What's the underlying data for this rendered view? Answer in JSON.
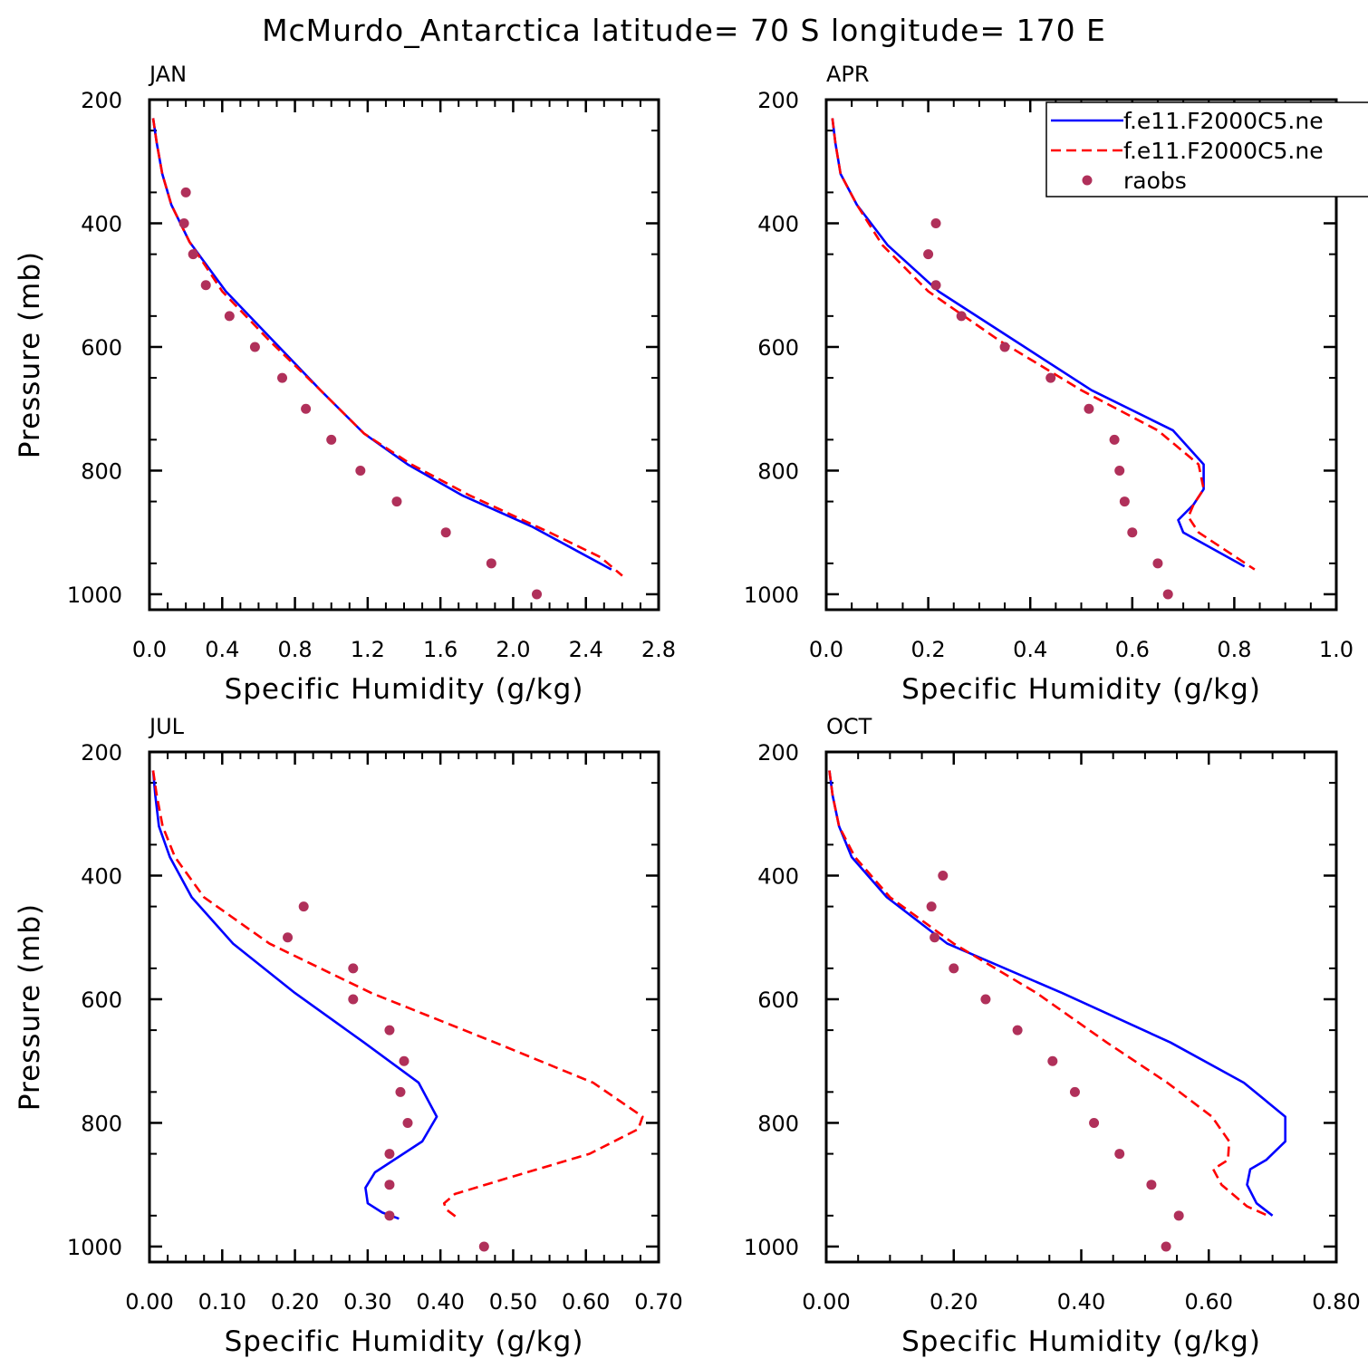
{
  "title": "McMurdo_Antarctica  latitude= 70 S longitude= 170 E",
  "legend": {
    "placement": "top-right of APR panel",
    "entries": [
      {
        "label": "f.e11.F2000C5.ne",
        "color": "#0000ff",
        "style": "solid"
      },
      {
        "label": "f.e11.F2000C5.ne",
        "color": "#ff0000",
        "style": "dashed"
      },
      {
        "label": "raobs",
        "color": "#b0305a",
        "style": "dot"
      }
    ]
  },
  "colors": {
    "model1": "#0000ff",
    "model2": "#ff0000",
    "raobs": "#b0305a"
  },
  "chart_data": [
    {
      "type": "line",
      "panel": "JAN",
      "xlabel": "Specific Humidity (g/kg)",
      "ylabel": "Pressure (mb)",
      "xlim": [
        0.0,
        2.8
      ],
      "ylim": [
        1025,
        200
      ],
      "y_inverted": true,
      "xticks": [
        0.0,
        0.4,
        0.8,
        1.2,
        1.6,
        2.0,
        2.4,
        2.8
      ],
      "xtick_labels": [
        "0.0",
        "0.4",
        "0.8",
        "1.2",
        "1.6",
        "2.0",
        "2.4",
        "2.8"
      ],
      "yticks": [
        200,
        400,
        600,
        800,
        1000
      ],
      "ytick_labels": [
        "200",
        "400",
        "600",
        "800",
        "1000"
      ],
      "series": [
        {
          "name": "f.e11.F2000C5.ne",
          "style": "solid",
          "color": "#0000ff",
          "points": [
            [
              0.02,
              230
            ],
            [
              0.04,
              270
            ],
            [
              0.07,
              320
            ],
            [
              0.12,
              370
            ],
            [
              0.22,
              430
            ],
            [
              0.42,
              510
            ],
            [
              0.68,
              590
            ],
            [
              0.94,
              670
            ],
            [
              1.18,
              740
            ],
            [
              1.42,
              790
            ],
            [
              1.72,
              840
            ],
            [
              2.1,
              890
            ],
            [
              2.54,
              960
            ]
          ]
        },
        {
          "name": "f.e11.F2000C5.ne",
          "style": "dashed",
          "color": "#ff0000",
          "points": [
            [
              0.02,
              230
            ],
            [
              0.04,
              270
            ],
            [
              0.07,
              320
            ],
            [
              0.12,
              370
            ],
            [
              0.22,
              430
            ],
            [
              0.4,
              510
            ],
            [
              0.66,
              590
            ],
            [
              0.94,
              670
            ],
            [
              1.18,
              740
            ],
            [
              1.44,
              790
            ],
            [
              1.76,
              840
            ],
            [
              2.2,
              900
            ],
            [
              2.48,
              940
            ],
            [
              2.6,
              970
            ]
          ]
        },
        {
          "name": "raobs",
          "style": "dot",
          "color": "#b0305a",
          "points": [
            [
              0.2,
              350
            ],
            [
              0.19,
              400
            ],
            [
              0.24,
              450
            ],
            [
              0.31,
              500
            ],
            [
              0.44,
              550
            ],
            [
              0.58,
              600
            ],
            [
              0.73,
              650
            ],
            [
              0.86,
              700
            ],
            [
              1.0,
              750
            ],
            [
              1.16,
              800
            ],
            [
              1.36,
              850
            ],
            [
              1.63,
              900
            ],
            [
              1.88,
              950
            ],
            [
              2.13,
              1000
            ]
          ]
        }
      ]
    },
    {
      "type": "line",
      "panel": "APR",
      "xlabel": "Specific Humidity (g/kg)",
      "ylabel": "",
      "xlim": [
        0.0,
        1.0
      ],
      "ylim": [
        1025,
        200
      ],
      "y_inverted": true,
      "xticks": [
        0.0,
        0.2,
        0.4,
        0.6,
        0.8,
        1.0
      ],
      "xtick_labels": [
        "0.0",
        "0.2",
        "0.4",
        "0.6",
        "0.8",
        "1.0"
      ],
      "yticks": [
        200,
        400,
        600,
        800,
        1000
      ],
      "ytick_labels": [
        "200",
        "400",
        "600",
        "800",
        "1000"
      ],
      "series": [
        {
          "name": "f.e11.F2000C5.ne",
          "style": "solid",
          "color": "#0000ff",
          "points": [
            [
              0.012,
              230
            ],
            [
              0.018,
              270
            ],
            [
              0.028,
              320
            ],
            [
              0.06,
              370
            ],
            [
              0.12,
              435
            ],
            [
              0.22,
              510
            ],
            [
              0.37,
              590
            ],
            [
              0.52,
              670
            ],
            [
              0.68,
              735
            ],
            [
              0.74,
              790
            ],
            [
              0.74,
              830
            ],
            [
              0.72,
              855
            ],
            [
              0.69,
              880
            ],
            [
              0.7,
              900
            ],
            [
              0.82,
              955
            ]
          ]
        },
        {
          "name": "f.e11.F2000C5.ne",
          "style": "dashed",
          "color": "#ff0000",
          "points": [
            [
              0.012,
              230
            ],
            [
              0.018,
              270
            ],
            [
              0.028,
              320
            ],
            [
              0.06,
              370
            ],
            [
              0.11,
              435
            ],
            [
              0.2,
              510
            ],
            [
              0.34,
              590
            ],
            [
              0.5,
              670
            ],
            [
              0.65,
              735
            ],
            [
              0.73,
              790
            ],
            [
              0.74,
              830
            ],
            [
              0.72,
              855
            ],
            [
              0.71,
              875
            ],
            [
              0.73,
              900
            ],
            [
              0.84,
              960
            ]
          ]
        },
        {
          "name": "raobs",
          "style": "dot",
          "color": "#b0305a",
          "points": [
            [
              0.215,
              400
            ],
            [
              0.2,
              450
            ],
            [
              0.215,
              500
            ],
            [
              0.265,
              550
            ],
            [
              0.35,
              600
            ],
            [
              0.44,
              650
            ],
            [
              0.515,
              700
            ],
            [
              0.565,
              750
            ],
            [
              0.575,
              800
            ],
            [
              0.585,
              850
            ],
            [
              0.6,
              900
            ],
            [
              0.65,
              950
            ],
            [
              0.67,
              1000
            ]
          ]
        }
      ]
    },
    {
      "type": "line",
      "panel": "JUL",
      "xlabel": "Specific Humidity (g/kg)",
      "ylabel": "Pressure (mb)",
      "xlim": [
        0.0,
        0.7
      ],
      "ylim": [
        1025,
        200
      ],
      "y_inverted": true,
      "xticks": [
        0.0,
        0.1,
        0.2,
        0.3,
        0.4,
        0.5,
        0.6,
        0.7
      ],
      "xtick_labels": [
        "0.00",
        "0.10",
        "0.20",
        "0.30",
        "0.40",
        "0.50",
        "0.60",
        "0.70"
      ],
      "yticks": [
        200,
        400,
        600,
        800,
        1000
      ],
      "ytick_labels": [
        "200",
        "400",
        "600",
        "800",
        "1000"
      ],
      "series": [
        {
          "name": "f.e11.F2000C5.ne",
          "style": "solid",
          "color": "#0000ff",
          "points": [
            [
              0.005,
              230
            ],
            [
              0.008,
              270
            ],
            [
              0.013,
              320
            ],
            [
              0.028,
              370
            ],
            [
              0.058,
              435
            ],
            [
              0.115,
              510
            ],
            [
              0.2,
              590
            ],
            [
              0.295,
              670
            ],
            [
              0.37,
              735
            ],
            [
              0.395,
              790
            ],
            [
              0.375,
              830
            ],
            [
              0.31,
              880
            ],
            [
              0.297,
              905
            ],
            [
              0.3,
              930
            ],
            [
              0.32,
              945
            ],
            [
              0.343,
              955
            ]
          ]
        },
        {
          "name": "f.e11.F2000C5.ne",
          "style": "dashed",
          "color": "#ff0000",
          "points": [
            [
              0.005,
              230
            ],
            [
              0.01,
              270
            ],
            [
              0.018,
              320
            ],
            [
              0.035,
              370
            ],
            [
              0.075,
              435
            ],
            [
              0.165,
              510
            ],
            [
              0.305,
              590
            ],
            [
              0.475,
              670
            ],
            [
              0.61,
              735
            ],
            [
              0.678,
              790
            ],
            [
              0.672,
              810
            ],
            [
              0.605,
              850
            ],
            [
              0.49,
              890
            ],
            [
              0.42,
              915
            ],
            [
              0.405,
              930
            ],
            [
              0.408,
              940
            ],
            [
              0.425,
              955
            ]
          ]
        },
        {
          "name": "raobs",
          "style": "dot",
          "color": "#b0305a",
          "points": [
            [
              0.212,
              450
            ],
            [
              0.19,
              500
            ],
            [
              0.28,
              550
            ],
            [
              0.28,
              600
            ],
            [
              0.33,
              650
            ],
            [
              0.35,
              700
            ],
            [
              0.345,
              750
            ],
            [
              0.355,
              800
            ],
            [
              0.33,
              850
            ],
            [
              0.33,
              900
            ],
            [
              0.33,
              950
            ],
            [
              0.46,
              1000
            ]
          ]
        }
      ]
    },
    {
      "type": "line",
      "panel": "OCT",
      "xlabel": "Specific Humidity (g/kg)",
      "ylabel": "",
      "xlim": [
        0.0,
        0.8
      ],
      "ylim": [
        1025,
        200
      ],
      "y_inverted": true,
      "xticks": [
        0.0,
        0.2,
        0.4,
        0.6,
        0.8
      ],
      "xtick_labels": [
        "0.00",
        "0.20",
        "0.40",
        "0.60",
        "0.80"
      ],
      "yticks": [
        200,
        400,
        600,
        800,
        1000
      ],
      "ytick_labels": [
        "200",
        "400",
        "600",
        "800",
        "1000"
      ],
      "series": [
        {
          "name": "f.e11.F2000C5.ne",
          "style": "solid",
          "color": "#0000ff",
          "points": [
            [
              0.005,
              230
            ],
            [
              0.01,
              270
            ],
            [
              0.02,
              320
            ],
            [
              0.04,
              370
            ],
            [
              0.095,
              435
            ],
            [
              0.19,
              510
            ],
            [
              0.37,
              590
            ],
            [
              0.54,
              670
            ],
            [
              0.655,
              735
            ],
            [
              0.72,
              790
            ],
            [
              0.72,
              830
            ],
            [
              0.69,
              860
            ],
            [
              0.665,
              875
            ],
            [
              0.66,
              900
            ],
            [
              0.675,
              930
            ],
            [
              0.7,
              950
            ]
          ]
        },
        {
          "name": "f.e11.F2000C5.ne",
          "style": "dashed",
          "color": "#ff0000",
          "points": [
            [
              0.005,
              230
            ],
            [
              0.01,
              270
            ],
            [
              0.02,
              320
            ],
            [
              0.045,
              370
            ],
            [
              0.1,
              435
            ],
            [
              0.2,
              510
            ],
            [
              0.33,
              590
            ],
            [
              0.44,
              670
            ],
            [
              0.535,
              735
            ],
            [
              0.605,
              790
            ],
            [
              0.632,
              830
            ],
            [
              0.63,
              860
            ],
            [
              0.607,
              875
            ],
            [
              0.62,
              900
            ],
            [
              0.66,
              935
            ],
            [
              0.697,
              952
            ]
          ]
        },
        {
          "name": "raobs",
          "style": "dot",
          "color": "#b0305a",
          "points": [
            [
              0.183,
              400
            ],
            [
              0.165,
              450
            ],
            [
              0.17,
              500
            ],
            [
              0.2,
              550
            ],
            [
              0.25,
              600
            ],
            [
              0.3,
              650
            ],
            [
              0.355,
              700
            ],
            [
              0.39,
              750
            ],
            [
              0.42,
              800
            ],
            [
              0.46,
              850
            ],
            [
              0.51,
              900
            ],
            [
              0.553,
              950
            ],
            [
              0.533,
              1000
            ]
          ]
        }
      ]
    }
  ]
}
